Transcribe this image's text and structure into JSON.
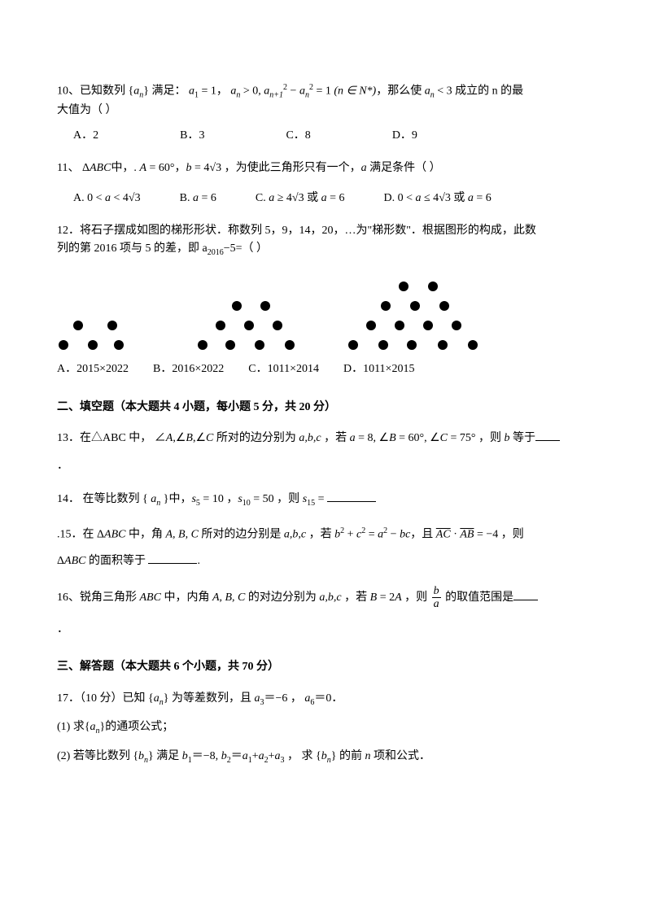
{
  "q10": {
    "text_prefix": "10、已知数列 {",
    "seq": "a",
    "sub_n": "n",
    "text_mid1": "} 满足：",
    "a1": "a",
    "eq1": " = 1",
    "sep1": "，",
    "cond2": " > 0, ",
    "recur_lhs": "a",
    "recur_sub1": "n+1",
    "sq": "2",
    "minus": " − ",
    "recur_sub2": "n",
    "eq2": " = 1",
    "domain": "  (n ∈ N*)",
    "text_tail": "，那么使 ",
    "cond3": " < 3 成立的 n 的最",
    "line2": "大值为（   ）",
    "optA": "A．2",
    "optB": "B．3",
    "optC": "C．8",
    "optD": "D．9"
  },
  "q11": {
    "text": "11、 Δ",
    "ABC": "ABC",
    "mid": "中，.  ",
    "A": "A",
    "eqA": " = 60°，",
    "b": "b",
    "eqB": " = 4",
    "sqrt3": "√3",
    "tail": " ，为使此三角形只有一个，",
    "a": "a",
    "tail2": " 满足条件（  ）",
    "optA_pre": "A. 0 < ",
    "optA_mid": " < 4",
    "optB_pre": "B. ",
    "optB_mid": " = 6",
    "optC_pre": "C. ",
    "optC_mid": " ≥ 4",
    "optC_or": " 或 ",
    "optC_eq": " = 6",
    "optD_pre": "D. 0 < ",
    "optD_mid": " ≤ 4",
    "optD_or": " 或 ",
    "optD_eq": " = 6"
  },
  "q12": {
    "line1": "12．将石子摆成如图的梯形形状．称数列 5，9，14，20，…为\"梯形数\"．根据图形的构成，此数",
    "line2_pre": "列的第 2016 项与 5 的差，即 a",
    "line2_sub": "2016",
    "line2_tail": "−5=（     ）",
    "optA": "A．2015×2022",
    "optB": "B．2016×2022",
    "optC": "C．1011×2014",
    "optD": "D．1011×2015"
  },
  "section2": "二、填空题（本大题共 4 小题，每小题 5 分，共 20 分）",
  "q13": {
    "pre": "13．在△ABC 中，  ∠",
    "A": "A",
    "c1": ",∠",
    "B": "B",
    "C": "C",
    "mid": " 所对的边分别为 ",
    "abc": "a,b,c",
    "cond": " ，若 ",
    "a": "a",
    "aval": " = 8, ∠",
    "bval": " = 60°, ∠",
    "cval": " = 75° ",
    "tail": "，则 ",
    "b": "b",
    "tail2": " 等于",
    "dot": "．"
  },
  "q14": {
    "pre": "14．  在等比数列 { ",
    "an": "a",
    "sub": "n",
    "mid": " }中，",
    "s5": "s",
    "s5sub": "5",
    "s5val": " = 10 ，",
    "s10": "s",
    "s10sub": "10",
    "s10val": " = 50 ，则 ",
    "s15": "s",
    "s15sub": "15",
    "eq": " = "
  },
  "q15": {
    "pre": ".15．在 Δ",
    "ABC": "ABC",
    "mid": " 中，角 ",
    "ABC2": "A, B, C",
    "mid2": " 所对的边分别是 ",
    "abc": "a,b,c",
    "cond": " ，若 ",
    "b": "b",
    "sq": "2",
    "plus": " + ",
    "c": "c",
    "eq": " = ",
    "a": "a",
    "minus": " − ",
    "bc": "bc",
    "sep": "，且 ",
    "AC": "AC",
    "dot": " · ",
    "AB": "AB",
    "val": " = −4 ，则",
    "line2_pre": "Δ",
    "line2_tail": " 的面积等于  ",
    "period": "."
  },
  "q16": {
    "pre": "16、锐角三角形 ",
    "ABC": "ABC",
    "mid": " 中，内角 ",
    "ABC2": "A, B, C",
    "mid2": " 的对边分别为 ",
    "abc": "a,b,c",
    "cond": " ，若 ",
    "B": "B",
    "eq": " = 2",
    "A": "A",
    "tail": " ，则 ",
    "frac_num": "b",
    "frac_den": "a",
    "tail2": " 的取值范围是",
    "dot": "．"
  },
  "section3": "  三、解答题（本大题共 6 个小题，共 70 分）",
  "q17": {
    "line1_pre": "17．（10 分）已知 {",
    "an": "a",
    "sub": "n",
    "line1_mid": "} 为等差数列，且  ",
    "a3": "a",
    "a3sub": "3",
    "a3val": "＝−6 ，  ",
    "a6": "a",
    "a6sub": "6",
    "a6val": "＝0．",
    "part1": "(1) 求{",
    "part1_tail": "}的通项公式；",
    "part2_pre": "(2) 若等比数列 {",
    "bn": "b",
    "part2_mid": "} 满足  ",
    "b1": "b",
    "b1sub": "1",
    "b1val": "＝−8, ",
    "b2": "b",
    "b2sub": "2",
    "b2eq": "＝",
    "a1": "a",
    "a1sub": "1",
    "plus": "+",
    "a2": "a",
    "a2sub": "2",
    "part2_tail": " ， 求 {",
    "part2_end": "} 的前 ",
    "nvar": "n",
    "part2_fin": " 项和公式．"
  },
  "figure": {
    "trapezoids": [
      {
        "ox": 20,
        "oy": 85,
        "rows": [
          [
            0,
            42
          ],
          [
            -18,
            18,
            50
          ]
        ]
      },
      {
        "ox": 215,
        "oy": 85,
        "rows": [
          [
            0,
            35
          ],
          [
            -20,
            15,
            50
          ],
          [
            -42,
            -8,
            28,
            65
          ]
        ]
      },
      {
        "ox": 420,
        "oy": 85,
        "rows": [
          [
            0,
            36
          ],
          [
            -22,
            14,
            50
          ],
          [
            -40,
            -5,
            30,
            65
          ],
          [
            -62,
            -25,
            10,
            48,
            85
          ]
        ]
      }
    ],
    "dot_size": 12
  }
}
